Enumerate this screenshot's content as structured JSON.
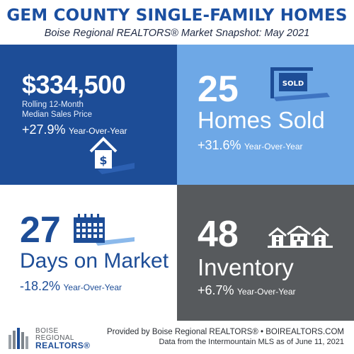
{
  "header": {
    "title": "GEM COUNTY SINGLE-FAMILY HOMES",
    "subtitle": "Boise Regional REALTORS® Market Snapshot: May 2021"
  },
  "tiles": {
    "median_price": {
      "value": "$334,500",
      "label_line1": "Rolling 12-Month",
      "label_line2": "Median Sales Price",
      "change": "+27.9%",
      "change_label": "Year-Over-Year",
      "icon": "house-dollar-icon"
    },
    "homes_sold": {
      "value": "25",
      "label": "Homes Sold",
      "change": "+31.6%",
      "change_label": "Year-Over-Year",
      "icon": "sold-sign-icon",
      "sign_text": "SOLD"
    },
    "days_on_market": {
      "value": "27",
      "label": "Days on Market",
      "change": "-18.2%",
      "change_label": "Year-Over-Year",
      "icon": "calendar-icon"
    },
    "inventory": {
      "value": "48",
      "label": "Inventory",
      "change": "+6.7%",
      "change_label": "Year-Over-Year",
      "icon": "houses-icon"
    }
  },
  "footer": {
    "logo_line1": "BOISE",
    "logo_line2": "REGIONAL",
    "logo_line3": "REALTORS®",
    "provided_by": "Provided by Boise Regional REALTORS® • BOIREALTORS.COM",
    "data_source": "Data from the Intermountain MLS as of June 11, 2021"
  },
  "colors": {
    "dark_blue": "#1d4d97",
    "light_blue": "#6ea8e6",
    "gray": "#575a5d",
    "title_blue": "#1b4fa0"
  }
}
